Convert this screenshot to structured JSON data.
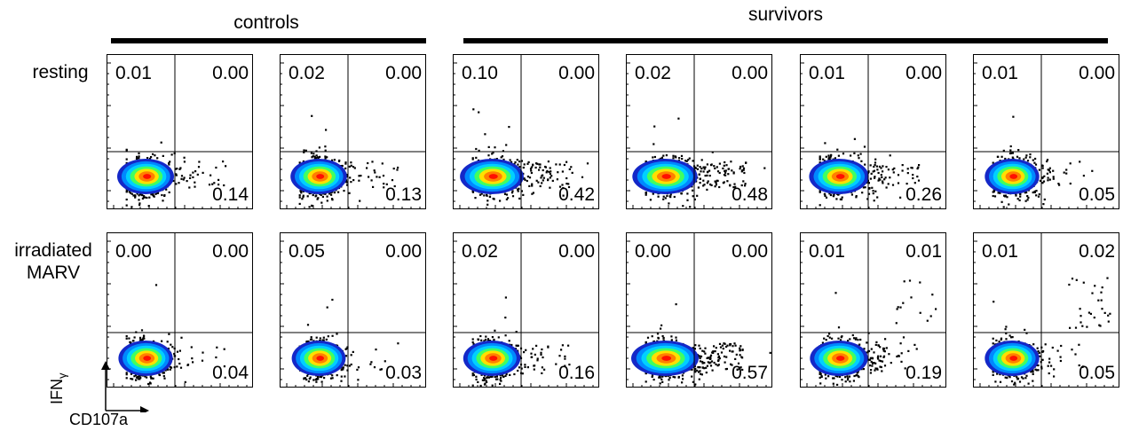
{
  "groups": [
    {
      "label": "controls"
    },
    {
      "label": "survivors"
    }
  ],
  "rows": [
    {
      "label_lines": [
        "resting"
      ]
    },
    {
      "label_lines": [
        "irradiated",
        "MARV"
      ]
    }
  ],
  "axes": {
    "x_label": "CD107a",
    "y_label_main": "IFN",
    "y_label_sub": "γ"
  },
  "colors": {
    "density": [
      "#1428c8",
      "#0088ff",
      "#00d0ff",
      "#40ff60",
      "#ffe000",
      "#ff8000",
      "#ff1000"
    ],
    "ink": "#000000"
  },
  "chart_data": {
    "type": "scatter",
    "description_type": "flow-cytometry quadrant density plots",
    "panels": [
      {
        "row": "resting",
        "group": "controls",
        "quadrants": {
          "upper_left": "0.01",
          "upper_right": "0.00",
          "lower_right": "0.14"
        }
      },
      {
        "row": "resting",
        "group": "controls",
        "quadrants": {
          "upper_left": "0.02",
          "upper_right": "0.00",
          "lower_right": "0.13"
        }
      },
      {
        "row": "resting",
        "group": "survivors",
        "quadrants": {
          "upper_left": "0.10",
          "upper_right": "0.00",
          "lower_right": "0.42"
        }
      },
      {
        "row": "resting",
        "group": "survivors",
        "quadrants": {
          "upper_left": "0.02",
          "upper_right": "0.00",
          "lower_right": "0.48"
        }
      },
      {
        "row": "resting",
        "group": "survivors",
        "quadrants": {
          "upper_left": "0.01",
          "upper_right": "0.00",
          "lower_right": "0.26"
        }
      },
      {
        "row": "resting",
        "group": "survivors",
        "quadrants": {
          "upper_left": "0.01",
          "upper_right": "0.00",
          "lower_right": "0.05"
        }
      },
      {
        "row": "irradiated MARV",
        "group": "controls",
        "quadrants": {
          "upper_left": "0.00",
          "upper_right": "0.00",
          "lower_right": "0.04"
        }
      },
      {
        "row": "irradiated MARV",
        "group": "controls",
        "quadrants": {
          "upper_left": "0.05",
          "upper_right": "0.00",
          "lower_right": "0.03"
        }
      },
      {
        "row": "irradiated MARV",
        "group": "survivors",
        "quadrants": {
          "upper_left": "0.02",
          "upper_right": "0.00",
          "lower_right": "0.16"
        }
      },
      {
        "row": "irradiated MARV",
        "group": "survivors",
        "quadrants": {
          "upper_left": "0.00",
          "upper_right": "0.00",
          "lower_right": "0.57"
        }
      },
      {
        "row": "irradiated MARV",
        "group": "survivors",
        "quadrants": {
          "upper_left": "0.01",
          "upper_right": "0.01",
          "lower_right": "0.19"
        }
      },
      {
        "row": "irradiated MARV",
        "group": "survivors",
        "quadrants": {
          "upper_left": "0.01",
          "upper_right": "0.02",
          "lower_right": "0.05"
        }
      }
    ]
  }
}
